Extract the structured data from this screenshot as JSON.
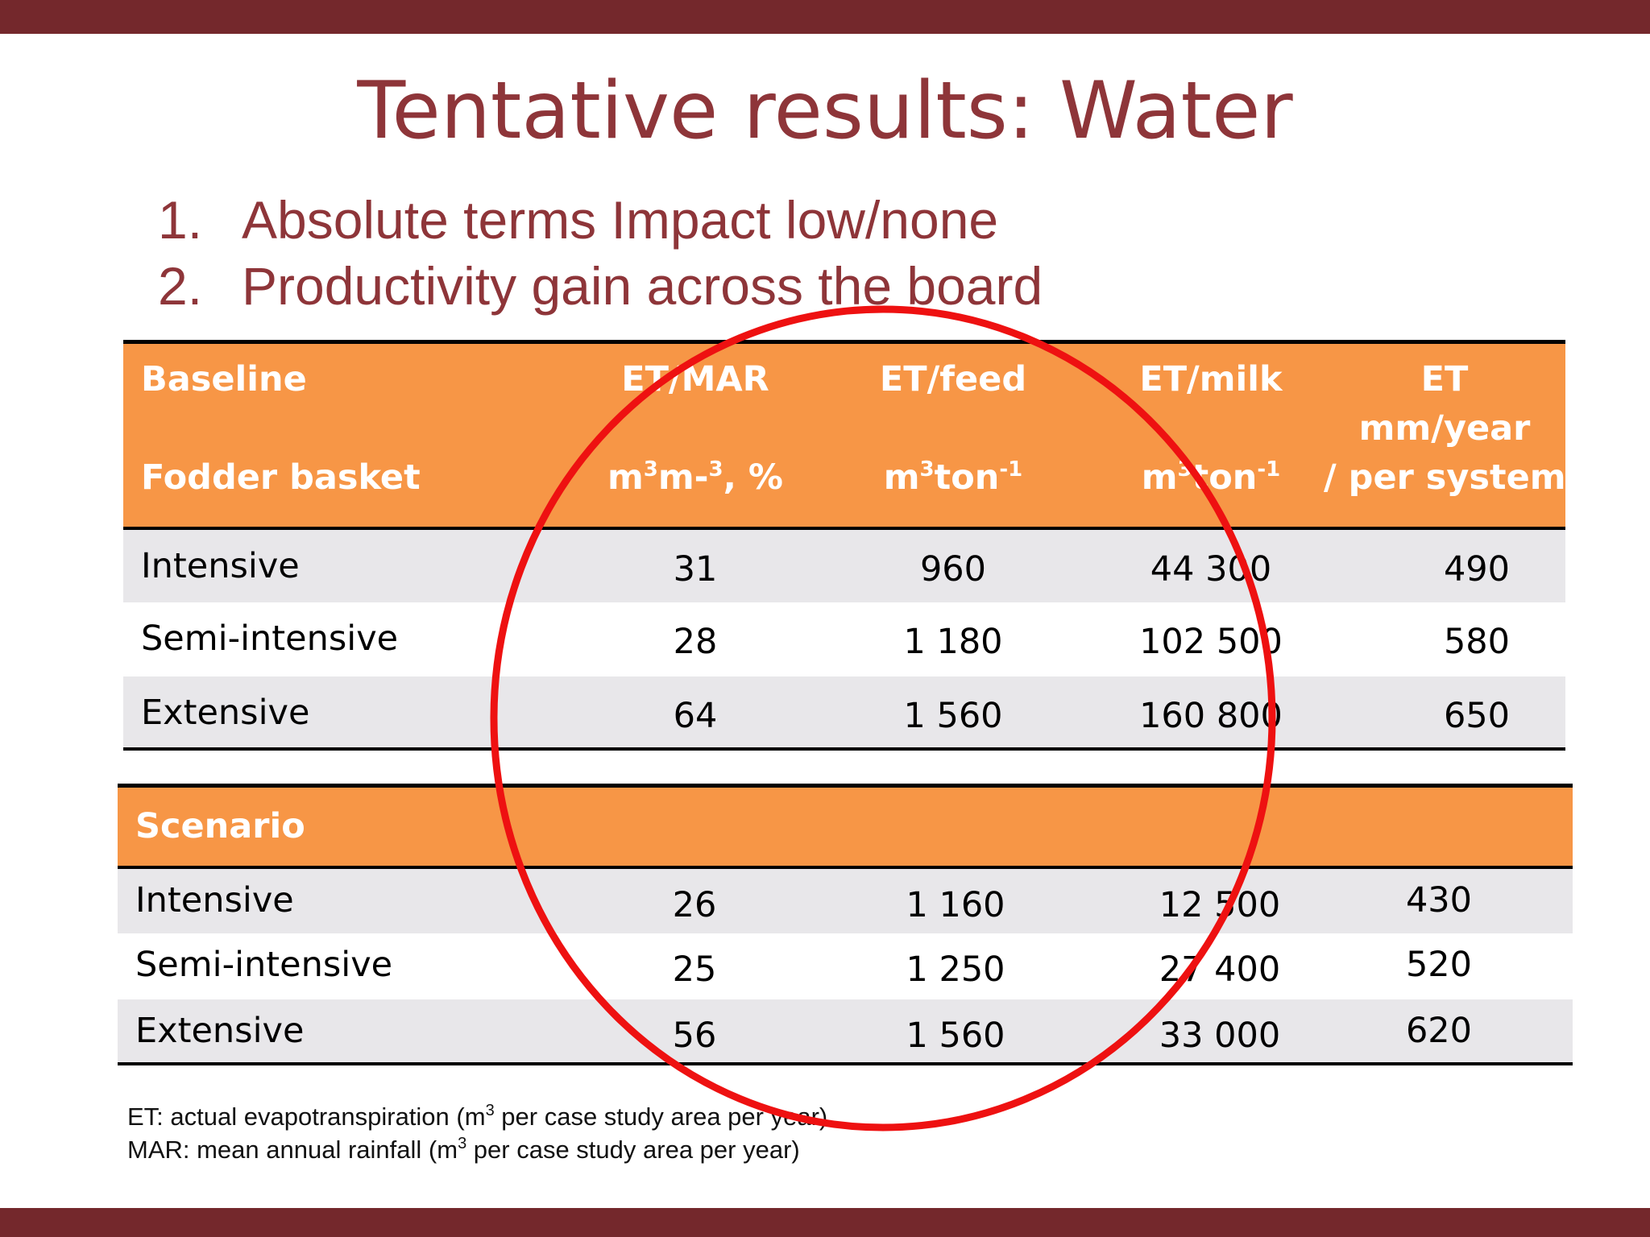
{
  "slide": {
    "title": "Tentative results: Water",
    "bullets": [
      {
        "num": "1.",
        "text": "Absolute terms Impact low/none"
      },
      {
        "num": "2.",
        "text": "Productivity gain across the board"
      }
    ]
  },
  "baseline": {
    "header": {
      "col1_line1": "Baseline",
      "col1_line2": "Fodder basket",
      "col2_line1": "ET/MAR",
      "col2_unit_a": "m",
      "col2_unit_sup1": "3",
      "col2_unit_b": "m-",
      "col2_unit_sup2": "3",
      "col2_unit_c": ", %",
      "col3_line1": "ET/feed",
      "col3_unit_a": "m",
      "col3_unit_sup1": "3",
      "col3_unit_b": "ton",
      "col3_unit_sup2": "-1",
      "col4_line1": "ET/milk",
      "col4_unit_a": "m",
      "col4_unit_sup1": "3",
      "col4_unit_b": "ton",
      "col4_unit_sup2": "-1",
      "col5_line1": "ET",
      "col5_line2": "mm/year",
      "col5_line3": "/ per system"
    },
    "rows": [
      {
        "label": "Intensive",
        "et_mar": "31",
        "et_feed": "960",
        "et_milk": "44 300",
        "et_mm": "490"
      },
      {
        "label": "Semi-intensive",
        "et_mar": "28",
        "et_feed": "1 180",
        "et_milk": "102 500",
        "et_mm": "580"
      },
      {
        "label": "Extensive",
        "et_mar": "64",
        "et_feed": "1 560",
        "et_milk": "160 800",
        "et_mm": "650"
      }
    ]
  },
  "scenario": {
    "header": "Scenario",
    "rows": [
      {
        "label": "Intensive",
        "et_mar": "26",
        "et_feed": "1 160",
        "et_milk": "12 500",
        "et_mm": "430"
      },
      {
        "label": "Semi-intensive",
        "et_mar": "25",
        "et_feed": "1 250",
        "et_milk": "27 400",
        "et_mm": "520"
      },
      {
        "label": "Extensive",
        "et_mar": "56",
        "et_feed": "1 560",
        "et_milk": "33 000",
        "et_mm": "620"
      }
    ]
  },
  "notes": {
    "line1_a": "ET: actual evapotranspiration (m",
    "line1_sup": "3",
    "line1_b": " per case study area per year)",
    "line2_a": "MAR: mean annual rainfall (m",
    "line2_sup": "3",
    "line2_b": " per case study area per year)"
  },
  "colors": {
    "bar": "#74282c",
    "title": "#8e3539",
    "header_fill": "#f79646",
    "row_gray": "#e8e7ea",
    "annotation_circle": "#ee1111"
  }
}
